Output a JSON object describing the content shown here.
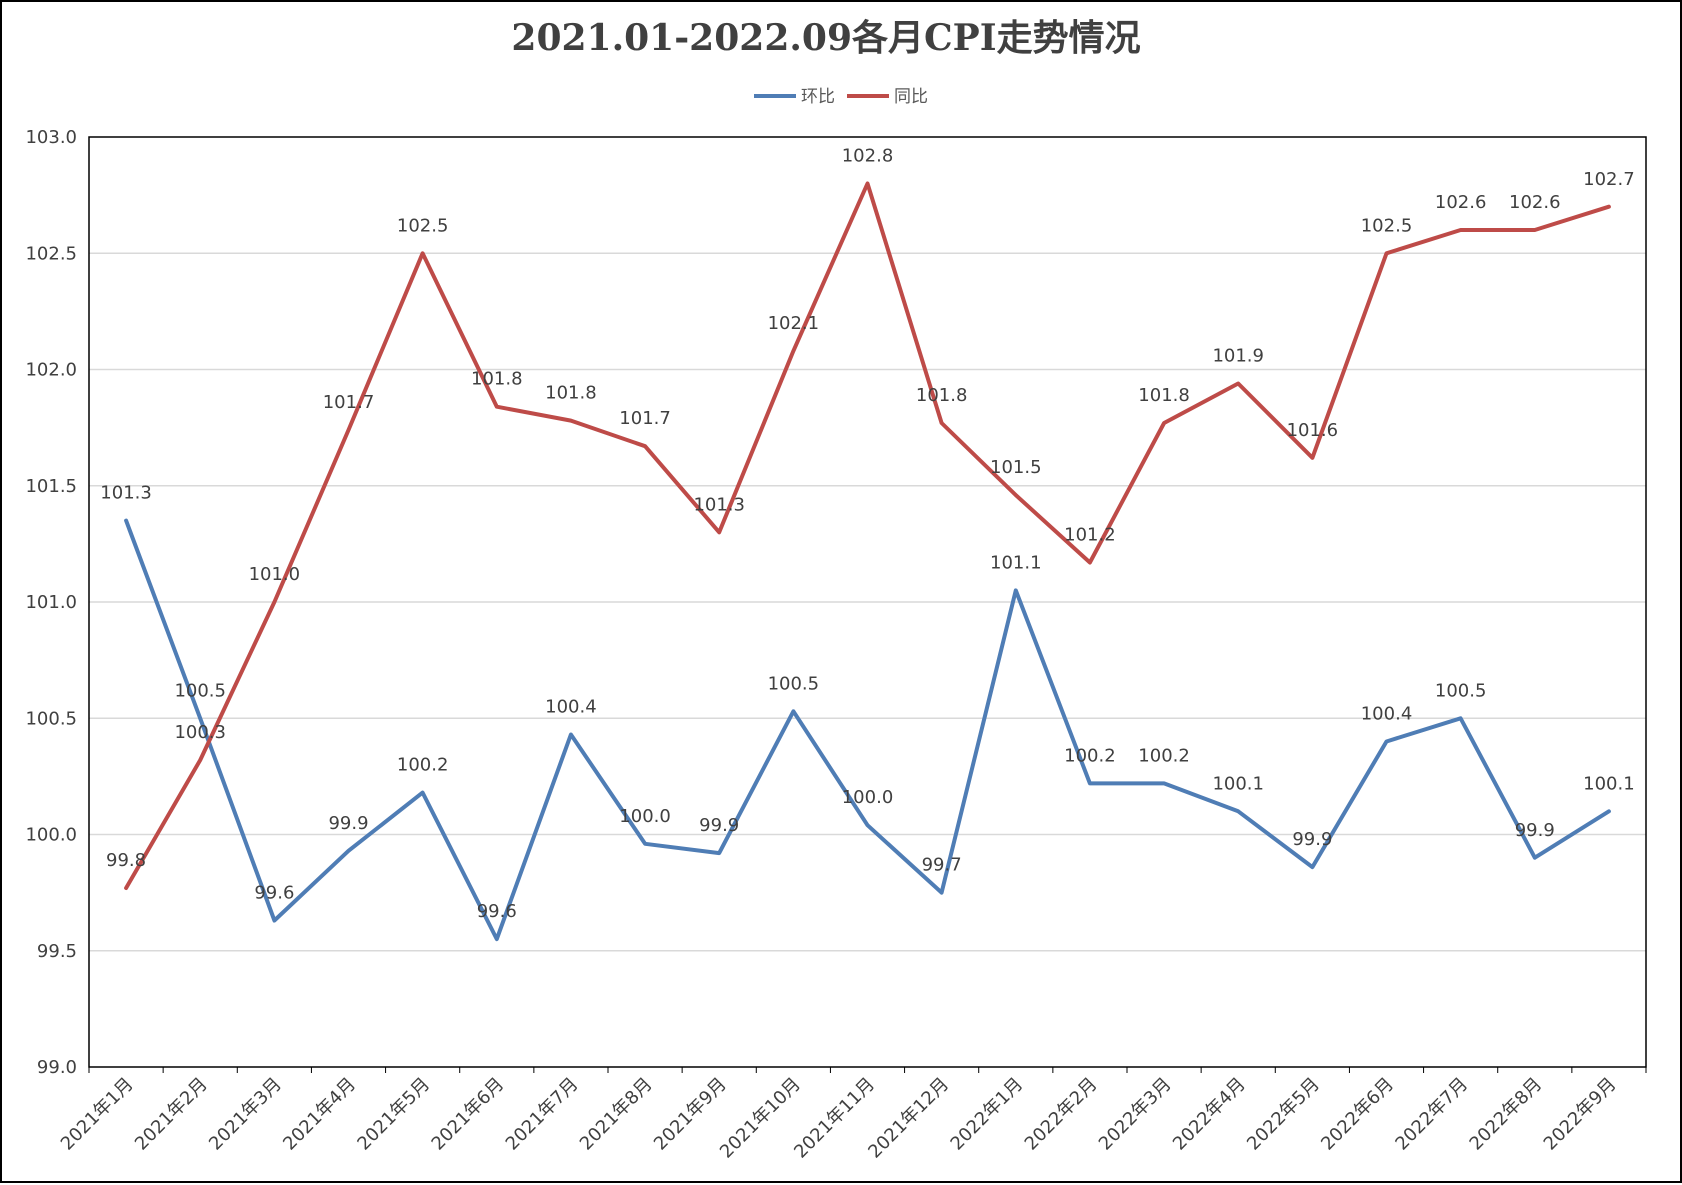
{
  "chart_data": {
    "type": "line",
    "title": "2021.01-2022.09各月CPI走势情况",
    "xlabel": "",
    "ylabel": "",
    "ylim": [
      99.0,
      103.0
    ],
    "yticks": [
      "99.0",
      "99.5",
      "100.0",
      "100.5",
      "101.0",
      "101.5",
      "102.0",
      "102.5",
      "103.0"
    ],
    "grid": true,
    "legend_position": "top-center",
    "categories": [
      "2021年1月",
      "2021年2月",
      "2021年3月",
      "2021年4月",
      "2021年5月",
      "2021年6月",
      "2021年7月",
      "2021年8月",
      "2021年9月",
      "2021年10月",
      "2021年11月",
      "2021年12月",
      "2022年1月",
      "2022年2月",
      "2022年3月",
      "2022年4月",
      "2022年5月",
      "2022年6月",
      "2022年7月",
      "2022年8月",
      "2022年9月"
    ],
    "series": [
      {
        "name": "环比",
        "color": "#4F7DB5",
        "values": [
          101.35,
          100.5,
          99.63,
          99.93,
          100.18,
          99.55,
          100.43,
          99.96,
          99.92,
          100.53,
          100.04,
          99.75,
          101.05,
          100.22,
          100.22,
          100.1,
          99.86,
          100.4,
          100.5,
          99.9,
          100.1
        ],
        "labels": [
          "101.3",
          "100.5",
          "99.6",
          "99.9",
          "100.2",
          "99.6",
          "100.4",
          "100.0",
          "99.9",
          "100.5",
          "100.0",
          "99.7",
          "101.1",
          "100.2",
          "100.2",
          "100.1",
          "99.9",
          "100.4",
          "100.5",
          "99.9",
          "100.1"
        ]
      },
      {
        "name": "同比",
        "color": "#BE4B48",
        "values": [
          99.77,
          100.32,
          101.0,
          101.74,
          102.5,
          101.84,
          101.78,
          101.67,
          101.3,
          102.08,
          102.8,
          101.77,
          101.46,
          101.17,
          101.77,
          101.94,
          101.62,
          102.5,
          102.6,
          102.6,
          102.7
        ],
        "labels": [
          "99.8",
          "100.3",
          "101.0",
          "101.7",
          "102.5",
          "101.8",
          "101.8",
          "101.7",
          "101.3",
          "102.1",
          "102.8",
          "101.8",
          "101.5",
          "101.2",
          "101.8",
          "101.9",
          "101.6",
          "102.5",
          "102.6",
          "102.6",
          "102.7"
        ]
      }
    ]
  }
}
